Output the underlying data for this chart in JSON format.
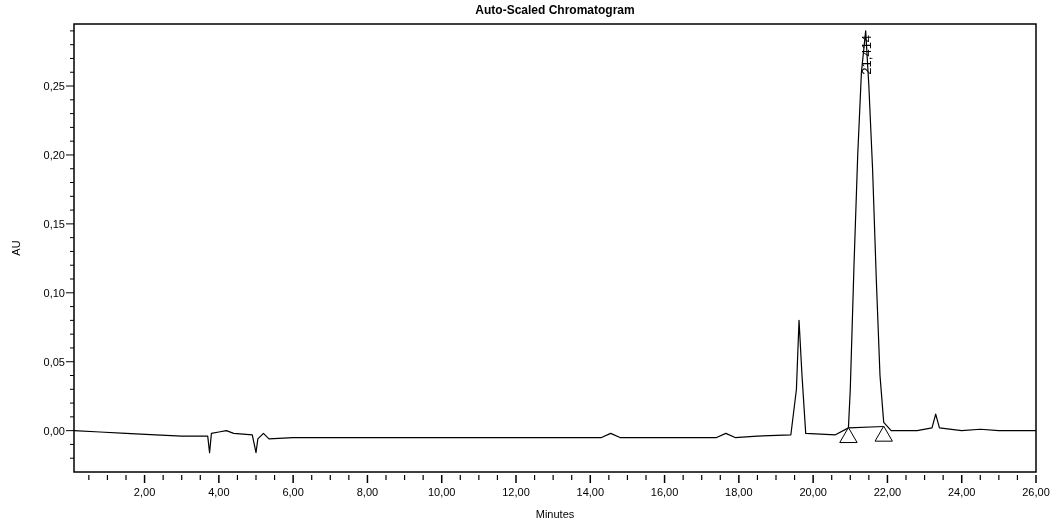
{
  "chart_data": {
    "type": "line",
    "title": "Auto-Scaled Chromatogram",
    "xlabel": "Minutes",
    "ylabel": "AU",
    "xlim": [
      0.1,
      26
    ],
    "ylim": [
      -0.03,
      0.295
    ],
    "xticks": [
      {
        "value": 0.5,
        "label": null
      },
      {
        "value": 1,
        "label": null
      },
      {
        "value": 1.5,
        "label": null
      },
      {
        "value": 2,
        "label": "2,00"
      },
      {
        "value": 2.5,
        "label": null
      },
      {
        "value": 3,
        "label": null
      },
      {
        "value": 3.5,
        "label": null
      },
      {
        "value": 4,
        "label": "4,00"
      },
      {
        "value": 4.5,
        "label": null
      },
      {
        "value": 5,
        "label": null
      },
      {
        "value": 5.5,
        "label": null
      },
      {
        "value": 6,
        "label": "6,00"
      },
      {
        "value": 6.5,
        "label": null
      },
      {
        "value": 7,
        "label": null
      },
      {
        "value": 7.5,
        "label": null
      },
      {
        "value": 8,
        "label": "8,00"
      },
      {
        "value": 8.5,
        "label": null
      },
      {
        "value": 9,
        "label": null
      },
      {
        "value": 9.5,
        "label": null
      },
      {
        "value": 10,
        "label": "10,00"
      },
      {
        "value": 10.5,
        "label": null
      },
      {
        "value": 11,
        "label": null
      },
      {
        "value": 11.5,
        "label": null
      },
      {
        "value": 12,
        "label": "12,00"
      },
      {
        "value": 12.5,
        "label": null
      },
      {
        "value": 13,
        "label": null
      },
      {
        "value": 13.5,
        "label": null
      },
      {
        "value": 14,
        "label": "14,00"
      },
      {
        "value": 14.5,
        "label": null
      },
      {
        "value": 15,
        "label": null
      },
      {
        "value": 15.5,
        "label": null
      },
      {
        "value": 16,
        "label": "16,00"
      },
      {
        "value": 16.5,
        "label": null
      },
      {
        "value": 17,
        "label": null
      },
      {
        "value": 17.5,
        "label": null
      },
      {
        "value": 18,
        "label": "18,00"
      },
      {
        "value": 18.5,
        "label": null
      },
      {
        "value": 19,
        "label": null
      },
      {
        "value": 19.5,
        "label": null
      },
      {
        "value": 20,
        "label": "20,00"
      },
      {
        "value": 20.5,
        "label": null
      },
      {
        "value": 21,
        "label": null
      },
      {
        "value": 21.5,
        "label": null
      },
      {
        "value": 22,
        "label": "22,00"
      },
      {
        "value": 22.5,
        "label": null
      },
      {
        "value": 23,
        "label": null
      },
      {
        "value": 23.5,
        "label": null
      },
      {
        "value": 24,
        "label": "24,00"
      },
      {
        "value": 24.5,
        "label": null
      },
      {
        "value": 25,
        "label": null
      },
      {
        "value": 25.5,
        "label": null
      },
      {
        "value": 26,
        "label": "26,00"
      }
    ],
    "yticks": [
      {
        "value": -0.02,
        "label": null
      },
      {
        "value": -0.01,
        "label": null
      },
      {
        "value": 0,
        "label": "0,00"
      },
      {
        "value": 0.01,
        "label": null
      },
      {
        "value": 0.02,
        "label": null
      },
      {
        "value": 0.03,
        "label": null
      },
      {
        "value": 0.04,
        "label": null
      },
      {
        "value": 0.05,
        "label": "0,05"
      },
      {
        "value": 0.06,
        "label": null
      },
      {
        "value": 0.07,
        "label": null
      },
      {
        "value": 0.08,
        "label": null
      },
      {
        "value": 0.09,
        "label": null
      },
      {
        "value": 0.1,
        "label": "0,10"
      },
      {
        "value": 0.11,
        "label": null
      },
      {
        "value": 0.12,
        "label": null
      },
      {
        "value": 0.13,
        "label": null
      },
      {
        "value": 0.14,
        "label": null
      },
      {
        "value": 0.15,
        "label": "0,15"
      },
      {
        "value": 0.16,
        "label": null
      },
      {
        "value": 0.17,
        "label": null
      },
      {
        "value": 0.18,
        "label": null
      },
      {
        "value": 0.19,
        "label": null
      },
      {
        "value": 0.2,
        "label": "0,20"
      },
      {
        "value": 0.21,
        "label": null
      },
      {
        "value": 0.22,
        "label": null
      },
      {
        "value": 0.23,
        "label": null
      },
      {
        "value": 0.24,
        "label": null
      },
      {
        "value": 0.25,
        "label": "0,25"
      },
      {
        "value": 0.26,
        "label": null
      },
      {
        "value": 0.27,
        "label": null
      },
      {
        "value": 0.28,
        "label": null
      },
      {
        "value": 0.29,
        "label": null
      }
    ],
    "grid": false,
    "annotations": [
      {
        "text": "21,414",
        "x": 21.414,
        "y": 0.29
      }
    ],
    "series": [
      {
        "color": "#000000",
        "x": [
          0.1,
          0.8,
          1.5,
          2.3,
          3.0,
          3.7,
          3.75,
          3.8,
          4.0,
          4.2,
          4.4,
          4.9,
          5.0,
          5.05,
          5.2,
          5.35,
          6.0,
          8,
          10,
          12,
          14.3,
          14.55,
          14.8,
          17.4,
          17.65,
          17.9,
          18.5,
          19.4,
          19.55,
          19.62,
          19.7,
          19.8,
          20.6,
          20.95,
          21.0,
          21.1,
          21.2,
          21.3,
          21.414,
          21.5,
          21.6,
          21.7,
          21.8,
          21.9,
          22.1,
          22.8,
          23.2,
          23.3,
          23.4,
          24,
          24.5,
          25,
          26
        ],
        "values": [
          0.0,
          -0.001,
          -0.002,
          -0.003,
          -0.004,
          -0.004,
          -0.016,
          -0.002,
          -0.001,
          0.0,
          -0.002,
          -0.003,
          -0.016,
          -0.006,
          -0.002,
          -0.006,
          -0.005,
          -0.005,
          -0.005,
          -0.005,
          -0.005,
          -0.002,
          -0.005,
          -0.005,
          -0.002,
          -0.005,
          -0.004,
          -0.003,
          0.03,
          0.08,
          0.04,
          -0.002,
          -0.003,
          0.002,
          0.03,
          0.12,
          0.2,
          0.26,
          0.29,
          0.25,
          0.19,
          0.11,
          0.04,
          0.006,
          0.0,
          0.0,
          0.002,
          0.012,
          0.002,
          0.0,
          0.001,
          0.0,
          0.0
        ]
      },
      {
        "color": "#000000",
        "x": [
          20.95,
          21.9
        ],
        "values": [
          0.002,
          0.003
        ]
      },
      {
        "type": "scatter",
        "color": "#000000",
        "marker": "triangle",
        "x": [
          20.95,
          21.9
        ],
        "values": [
          -0.005,
          -0.004
        ]
      }
    ]
  }
}
